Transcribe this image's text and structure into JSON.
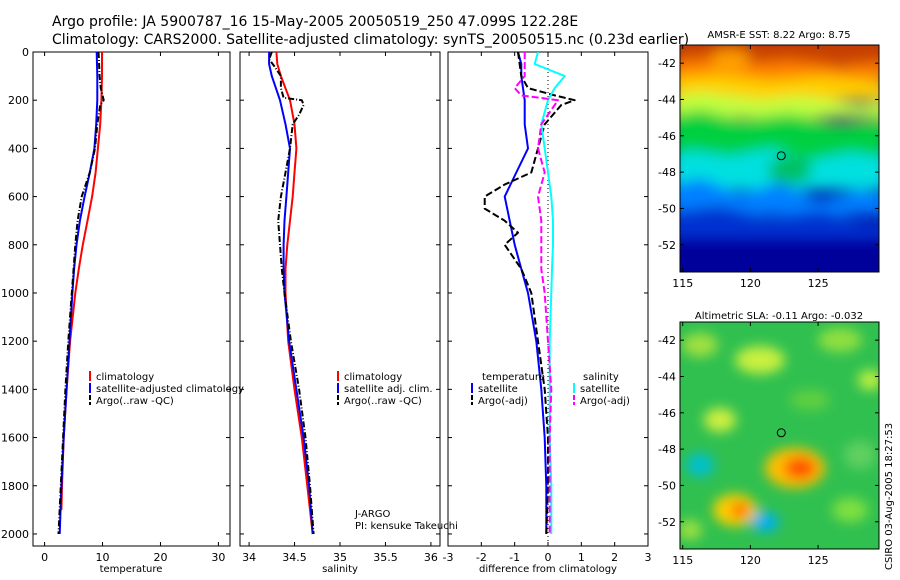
{
  "title_line1": "Argo profile: JA 5900787_16 15-May-2005 20050519_250 47.099S 122.28E",
  "title_line2": "Climatology: CARS2000. Satellite-adjusted climatology: synTS_20050515.nc (0.23d earlier)",
  "credit": "CSIRO 03-Aug-2005 18:27:53",
  "colors": {
    "climatology": "#ff0000",
    "satellite": "#0000ff",
    "argo": "#000000",
    "sal_satellite": "#00ffff",
    "sal_argo": "#ff00ff"
  },
  "chart_data": [
    {
      "type": "line",
      "xlabel": "temperature",
      "ylabel": "",
      "xlim": [
        -2,
        32
      ],
      "ylim": [
        2050,
        0
      ],
      "xticks": [
        0,
        10,
        20,
        30
      ],
      "yticks": [
        0,
        200,
        400,
        600,
        800,
        1000,
        1200,
        1400,
        1600,
        1800,
        2000
      ],
      "legend": {
        "location": "lower-right",
        "entries": [
          "climatology",
          "satellite-adjusted climatology",
          "Argo(..raw -QC)"
        ]
      },
      "series": [
        {
          "name": "climatology",
          "style": "solid",
          "color": "#ff0000",
          "depth": [
            0,
            100,
            200,
            300,
            400,
            500,
            600,
            700,
            800,
            900,
            1000,
            1200,
            1400,
            1600,
            1800,
            1900
          ],
          "values": [
            9.9,
            9.9,
            9.8,
            9.6,
            9.2,
            8.8,
            8.2,
            7.4,
            6.6,
            5.9,
            5.3,
            4.4,
            3.8,
            3.3,
            3.0,
            2.9
          ]
        },
        {
          "name": "satellite-adjusted climatology",
          "style": "solid",
          "color": "#0000ff",
          "depth": [
            0,
            100,
            200,
            300,
            400,
            500,
            600,
            700,
            800,
            900,
            1000,
            1200,
            1400,
            1600,
            1800,
            2000
          ],
          "values": [
            9.0,
            9.1,
            9.1,
            8.9,
            8.6,
            7.8,
            6.9,
            6.1,
            5.5,
            5.1,
            4.8,
            4.3,
            3.8,
            3.3,
            2.9,
            2.6
          ]
        },
        {
          "name": "Argo(..raw -QC)",
          "style": "dashdot",
          "color": "#000000",
          "depth": [
            0,
            50,
            100,
            150,
            200,
            220,
            300,
            400,
            500,
            600,
            700,
            800,
            900,
            1000,
            1200,
            1400,
            1600,
            1800,
            2000
          ],
          "values": [
            9.3,
            9.4,
            9.5,
            9.7,
            10.2,
            9.6,
            9.1,
            8.7,
            7.8,
            6.4,
            5.7,
            5.3,
            5.0,
            4.7,
            4.1,
            3.6,
            3.2,
            2.8,
            2.4
          ]
        }
      ]
    },
    {
      "type": "line",
      "xlabel": "salinity",
      "ylabel": "",
      "xlim": [
        33.9,
        36.1
      ],
      "ylim": [
        2050,
        0
      ],
      "xticks": [
        34,
        34.5,
        35,
        35.5,
        36
      ],
      "legend": {
        "location": "lower-right",
        "entries": [
          "climatology",
          "satellite adj. clim.",
          "Argo(..raw -QC)"
        ]
      },
      "annotation": [
        "J-ARGO",
        "PI: kensuke Takeuchi"
      ],
      "series": [
        {
          "name": "climatology",
          "style": "solid",
          "color": "#ff0000",
          "depth": [
            0,
            50,
            100,
            200,
            300,
            400,
            500,
            600,
            700,
            800,
            900,
            1000,
            1200,
            1400,
            1600,
            1800,
            2000
          ],
          "values": [
            34.3,
            34.31,
            34.35,
            34.45,
            34.5,
            34.52,
            34.5,
            34.48,
            34.45,
            34.42,
            34.4,
            34.4,
            34.43,
            34.5,
            34.58,
            34.64,
            34.7
          ]
        },
        {
          "name": "satellite adj. clim.",
          "style": "solid",
          "color": "#0000ff",
          "depth": [
            0,
            50,
            100,
            200,
            300,
            400,
            500,
            600,
            700,
            800,
            900,
            1000,
            1200,
            1400,
            1600,
            1800,
            2000
          ],
          "values": [
            34.22,
            34.22,
            34.25,
            34.34,
            34.4,
            34.45,
            34.43,
            34.41,
            34.39,
            34.38,
            34.38,
            34.39,
            34.44,
            34.52,
            34.6,
            34.66,
            34.7
          ]
        },
        {
          "name": "Argo(..raw -QC)",
          "style": "dashdot",
          "color": "#000000",
          "depth": [
            0,
            30,
            60,
            100,
            150,
            190,
            200,
            220,
            260,
            300,
            400,
            500,
            600,
            700,
            800,
            900,
            1000,
            1200,
            1400,
            1600,
            1800,
            2000
          ],
          "values": [
            34.25,
            34.22,
            34.28,
            34.35,
            34.35,
            34.38,
            34.58,
            34.6,
            34.55,
            34.48,
            34.45,
            34.4,
            34.35,
            34.32,
            34.34,
            34.36,
            34.39,
            34.46,
            34.55,
            34.62,
            34.67,
            34.71
          ]
        }
      ]
    },
    {
      "type": "line",
      "xlabel": "difference from climatology",
      "ylabel": "",
      "xlim": [
        -3,
        3
      ],
      "ylim": [
        2050,
        0
      ],
      "xticks": [
        -3,
        -2,
        -1,
        0,
        1,
        2,
        3
      ],
      "zero_line": "dotted",
      "legend": {
        "location": "lower-center",
        "headers": [
          "temperature",
          "salinity"
        ],
        "entries": [
          "satellite",
          "Argo(-adj)",
          "satellite",
          "Argo(-adj)"
        ]
      },
      "series": [
        {
          "name": "satellite",
          "group": "temperature",
          "style": "solid",
          "color": "#0000ff",
          "depth": [
            0,
            50,
            100,
            200,
            300,
            400,
            500,
            600,
            700,
            800,
            900,
            1000,
            1200,
            1400,
            1600,
            1800,
            2000
          ],
          "values": [
            -0.9,
            -0.8,
            -0.8,
            -0.7,
            -0.7,
            -0.6,
            -0.95,
            -1.3,
            -1.15,
            -1.0,
            -0.8,
            -0.6,
            -0.35,
            -0.2,
            -0.1,
            -0.05,
            -0.05
          ]
        },
        {
          "name": "Argo(-adj)",
          "group": "temperature",
          "style": "dashed",
          "color": "#000000",
          "depth": [
            0,
            100,
            150,
            180,
            200,
            220,
            300,
            400,
            500,
            550,
            600,
            650,
            700,
            750,
            800,
            900,
            1000,
            1200,
            1400,
            1600,
            1800,
            2000
          ],
          "values": [
            -0.9,
            -0.8,
            -0.6,
            0.2,
            0.8,
            0.4,
            -0.1,
            -0.3,
            -0.5,
            -1.3,
            -1.9,
            -1.9,
            -1.3,
            -0.9,
            -1.3,
            -0.8,
            -0.5,
            -0.3,
            -0.1,
            0.0,
            0.0,
            -0.05
          ]
        },
        {
          "name": "satellite",
          "group": "salinity",
          "style": "solid",
          "color": "#00ffff",
          "depth": [
            0,
            50,
            100,
            150,
            200,
            300,
            400,
            500,
            600,
            700,
            800,
            900,
            1000,
            1200,
            1400,
            1600,
            1800,
            2000
          ],
          "values": [
            -0.3,
            -0.4,
            0.5,
            0.2,
            0.0,
            -0.2,
            -0.1,
            0.0,
            0.1,
            0.15,
            0.15,
            0.12,
            0.1,
            0.05,
            0.05,
            0.05,
            0.1,
            0.1
          ]
        },
        {
          "name": "Argo(-adj)",
          "group": "salinity",
          "style": "dashed",
          "color": "#ff00ff",
          "depth": [
            0,
            100,
            150,
            180,
            200,
            220,
            300,
            400,
            500,
            600,
            700,
            800,
            900,
            1000,
            1200,
            1400,
            1600,
            1800,
            2000
          ],
          "values": [
            -0.7,
            -0.7,
            -1.0,
            -0.8,
            0.3,
            0.2,
            -0.2,
            -0.3,
            -0.1,
            -0.3,
            -0.2,
            -0.2,
            -0.2,
            -0.1,
            0.0,
            0.1,
            0.05,
            0.05,
            0.05
          ]
        }
      ]
    },
    {
      "type": "heatmap",
      "title": "AMSR-E SST: 8.22 Argo: 8.75",
      "xlim": [
        114.8,
        129.5
      ],
      "ylim": [
        -53.5,
        -41
      ],
      "xticks": [
        115,
        120,
        125
      ],
      "yticks": [
        -42,
        -44,
        -46,
        -48,
        -50,
        -52
      ],
      "marker": {
        "lon": 122.28,
        "lat": -47.1
      },
      "colormap": "jet",
      "pattern": "warm (orange/red) in north near -42, yellow near -44, green -45 to -47, cyan -48, blue near -50, dark blue south of -51"
    },
    {
      "type": "heatmap",
      "title": "Altimetric SLA: -0.11 Argo: -0.032",
      "xlim": [
        114.8,
        129.5
      ],
      "ylim": [
        -53.5,
        -41
      ],
      "xticks": [
        115,
        120,
        125
      ],
      "yticks": [
        -42,
        -44,
        -46,
        -48,
        -50,
        -52
      ],
      "marker": {
        "lon": 122.28,
        "lat": -47.1
      },
      "colormap": "jet",
      "pattern": "mostly green with yellow eddies; orange/red anomalies near (123,-48.5) and (119,-50.5); cyan/blue lows near (117,-48) and (121,-51)"
    }
  ]
}
